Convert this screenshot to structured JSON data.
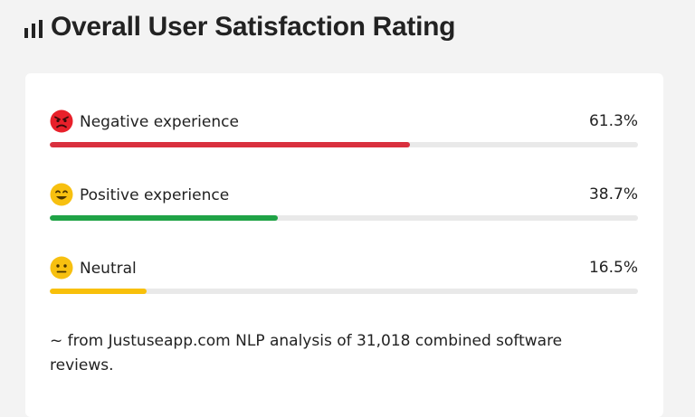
{
  "header": {
    "title": "Overall User Satisfaction Rating",
    "icon": "bar-chart-icon"
  },
  "ratings": [
    {
      "icon": "angry-face-icon",
      "label": "Negative experience",
      "percent_text": "61.3%",
      "value": 61.3,
      "color": "#d9303e"
    },
    {
      "icon": "smiling-face-icon",
      "label": "Positive experience",
      "percent_text": "38.7%",
      "value": 38.7,
      "color": "#1fa346"
    },
    {
      "icon": "neutral-face-icon",
      "label": "Neutral",
      "percent_text": "16.5%",
      "value": 16.5,
      "color": "#f8c00a"
    }
  ],
  "footnote": "~ from Justuseapp.com NLP analysis of 31,018 combined software reviews."
}
